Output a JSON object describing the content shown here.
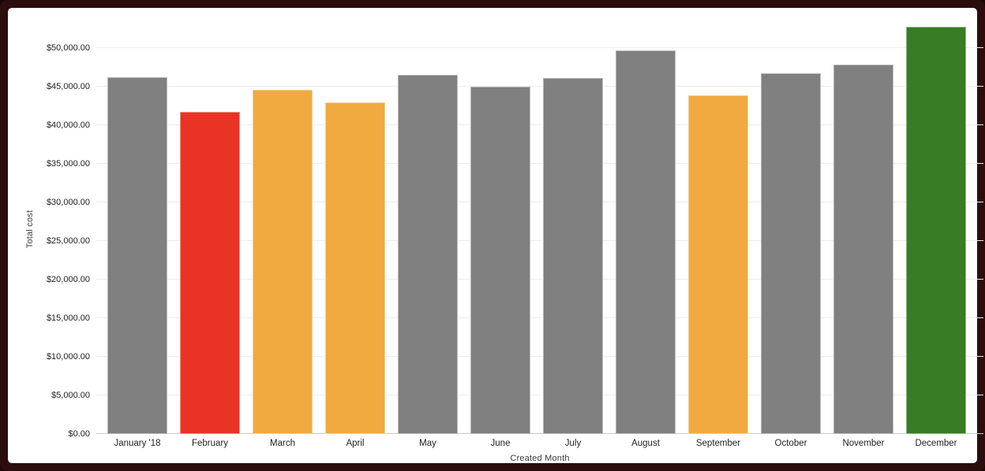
{
  "frame": {
    "border_color": "#2c0d0d",
    "panel_color": "#ffffff"
  },
  "chart_data": {
    "type": "bar",
    "title": "",
    "xlabel": "Created Month",
    "ylabel": "Total cost",
    "categories": [
      "January '18",
      "February",
      "March",
      "April",
      "May",
      "June",
      "July",
      "August",
      "September",
      "October",
      "November",
      "December"
    ],
    "values": [
      46300,
      41800,
      44600,
      43000,
      46600,
      45000,
      46200,
      49700,
      43900,
      46800,
      47900,
      52800
    ],
    "bar_color_keys": [
      "gray",
      "red",
      "orange",
      "orange",
      "gray",
      "gray",
      "gray",
      "gray",
      "orange",
      "gray",
      "gray",
      "green"
    ],
    "palette": {
      "gray": "#808080",
      "red": "#e93325",
      "orange": "#f0aa40",
      "green": "#377d24"
    },
    "ylim": [
      0,
      53000
    ],
    "ytick_step": 5000,
    "yticks": [
      0,
      5000,
      10000,
      15000,
      20000,
      25000,
      30000,
      35000,
      40000,
      45000,
      50000
    ],
    "ytick_labels": [
      "$0.00",
      "$5,000.00",
      "$10,000.00",
      "$15,000.00",
      "$20,000.00",
      "$25,000.00",
      "$30,000.00",
      "$35,000.00",
      "$40,000.00",
      "$45,000.00",
      "$50,000.00"
    ],
    "grid": "horizontal",
    "legend": "none"
  }
}
